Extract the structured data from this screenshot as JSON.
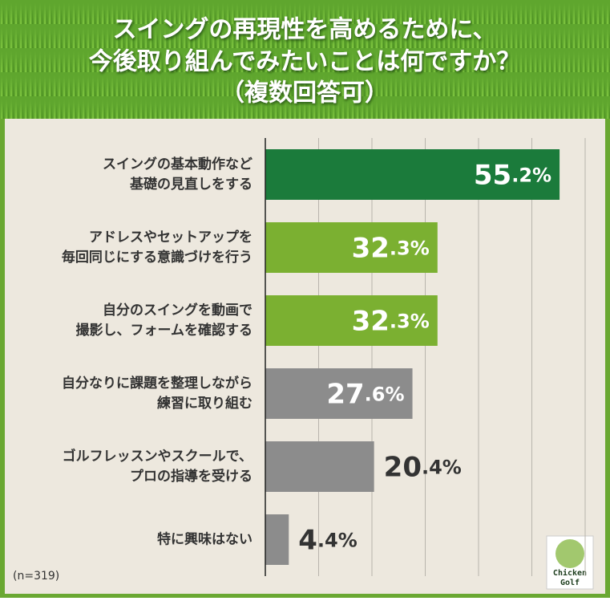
{
  "chart_data": {
    "type": "barh",
    "title": [
      "スイングの再現性を高めるために、",
      "今後取り組んでみたいことは何ですか？",
      "（複数回答可）"
    ],
    "categories": [
      [
        "スイングの基本動作など",
        "基礎の見直しをする"
      ],
      [
        "アドレスやセットアップを",
        "毎回同じにする意識づけを行う"
      ],
      [
        "自分のスイングを動画で",
        "撮影し、フォームを確認する"
      ],
      [
        "自分なりに課題を整理しながら",
        "練習に取り組む"
      ],
      [
        "ゴルフレッスンやスクールで、",
        "プロの指導を受ける"
      ],
      [
        "特に興味はない"
      ]
    ],
    "values": [
      55.2,
      32.3,
      32.3,
      27.6,
      20.4,
      4.4
    ],
    "value_labels": [
      "55.2%",
      "32.3%",
      "32.3%",
      "27.6%",
      "20.4%",
      "4.4%"
    ],
    "colors": [
      "#1b7b3b",
      "#7bb031",
      "#7bb031",
      "#8c8c8c",
      "#8c8c8c",
      "#8c8c8c"
    ],
    "xlim": [
      0,
      60
    ],
    "xticks": [
      0,
      10,
      20,
      30,
      40,
      50,
      60
    ],
    "grid": true,
    "note": "(n=319)",
    "logo": [
      "Chicken",
      "Golf"
    ]
  }
}
